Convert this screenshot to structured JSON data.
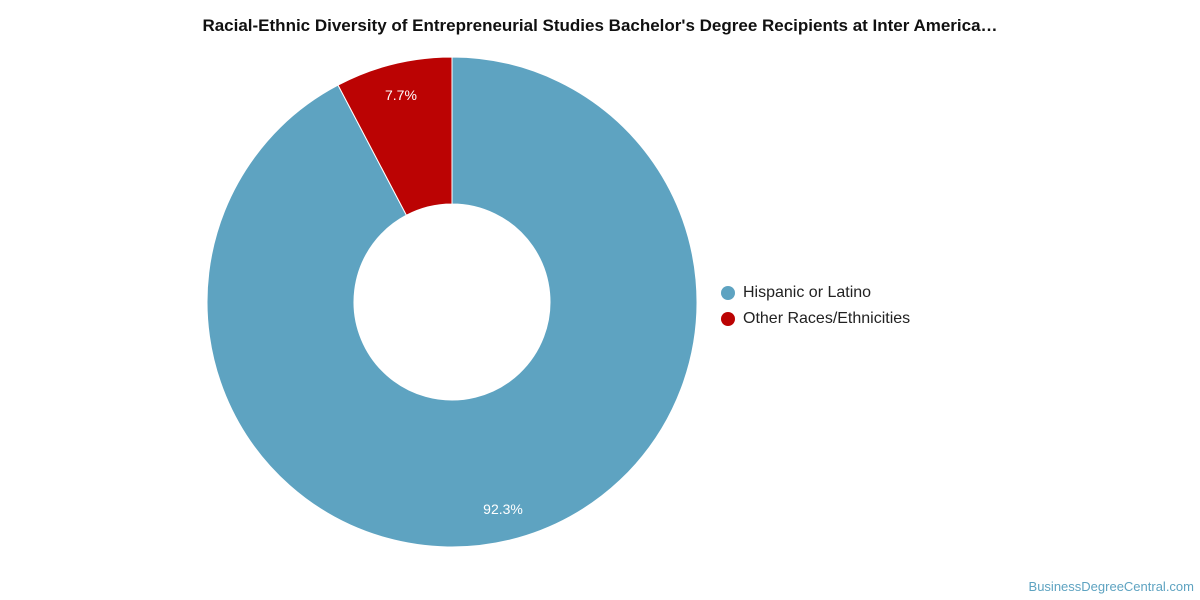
{
  "chart_data": {
    "type": "pie",
    "title": "Racial-Ethnic Diversity of Entrepreneurial Studies Bachelor's Degree Recipients at Inter America…",
    "donut": true,
    "legend_placement": "right",
    "categories": [
      "Hispanic or Latino",
      "Other Races/Ethnicities"
    ],
    "values": [
      92.3,
      7.7
    ],
    "labels": [
      "92.3%",
      "7.7%"
    ],
    "colors": [
      "#5ea3c1",
      "#bb0303"
    ]
  },
  "footer": {
    "source": "BusinessDegreeCentral.com"
  }
}
